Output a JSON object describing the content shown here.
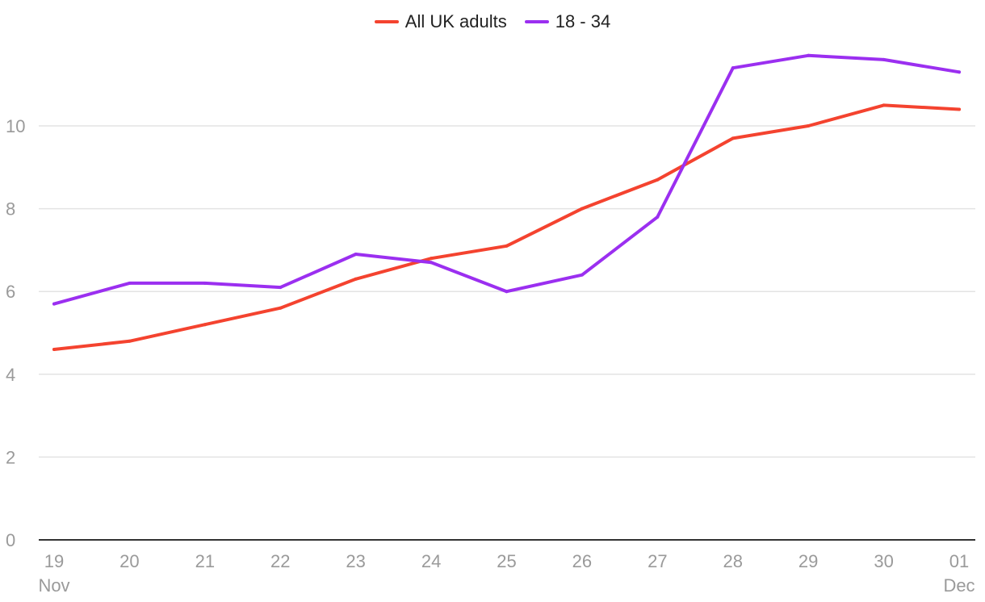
{
  "chart_data": {
    "type": "line",
    "x": [
      "19",
      "20",
      "21",
      "22",
      "23",
      "24",
      "25",
      "26",
      "27",
      "28",
      "29",
      "30",
      "01"
    ],
    "x_sublabels": {
      "0": "Nov",
      "12": "Dec"
    },
    "series": [
      {
        "name": "All UK adults",
        "color": "#f4432f",
        "values": [
          4.6,
          4.8,
          5.2,
          5.6,
          6.3,
          6.8,
          7.1,
          8.0,
          8.7,
          9.7,
          10.0,
          10.5,
          10.4
        ]
      },
      {
        "name": "18 - 34",
        "color": "#9b2ff0",
        "values": [
          5.7,
          6.2,
          6.2,
          6.1,
          6.9,
          6.7,
          6.0,
          6.4,
          7.8,
          11.4,
          11.7,
          11.6,
          11.3
        ]
      }
    ],
    "yticks": [
      0,
      2,
      4,
      6,
      8,
      10
    ],
    "ylim": [
      0,
      12
    ],
    "grid": true,
    "legend_position": "top-center",
    "title": "",
    "xlabel": "",
    "ylabel": ""
  }
}
